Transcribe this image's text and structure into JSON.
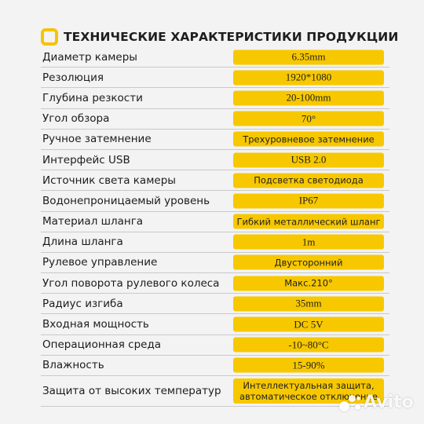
{
  "header": {
    "title": "ТЕХНИЧЕСКИЕ ХАРАКТЕРИСТИКИ ПРОДУКЦИИ",
    "icon": "yellow-square-outline-icon",
    "accent_color": "#f7c800"
  },
  "specs": [
    {
      "label": "Диаметр камеры",
      "value": "6.35mm"
    },
    {
      "label": "Резолюция",
      "value": "1920*1080"
    },
    {
      "label": "Глубина резкости",
      "value": "20-100mm"
    },
    {
      "label": "Угол обзора",
      "value": "70°"
    },
    {
      "label": "Ручное затемнение",
      "value": "Трехуровневое затемнение"
    },
    {
      "label": "Интерфейс USB",
      "value": "USB 2.0"
    },
    {
      "label": "Источник света камеры",
      "value": "Подсветка светодиода"
    },
    {
      "label": "Водонепроницаемый уровень",
      "value": "IP67"
    },
    {
      "label": "Материал шланга",
      "value": "Гибкий металлический шланг"
    },
    {
      "label": "Длина шланга",
      "value": "1m"
    },
    {
      "label": "Рулевое управление",
      "value": "Двусторонний"
    },
    {
      "label": "Угол поворота рулевого колеса",
      "value": "Макс.210°"
    },
    {
      "label": "Радиус изгиба",
      "value": "35mm"
    },
    {
      "label": "Входная мощность",
      "value": "DC 5V"
    },
    {
      "label": "Операционная среда",
      "value": "-10~80°C"
    },
    {
      "label": "Влажность",
      "value": "15-90%"
    },
    {
      "label": "Защита от высоких температур",
      "value_line1": "Интеллектуальная защита,",
      "value_line2": "автоматическое отключение"
    }
  ],
  "watermark": {
    "text": "Avito",
    "icon": "avito-dots-icon"
  }
}
